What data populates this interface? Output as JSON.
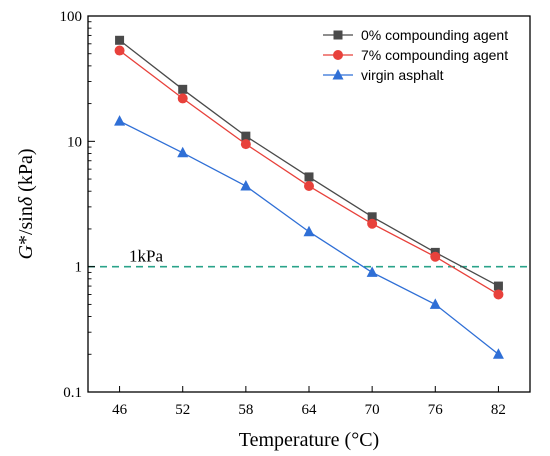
{
  "chart_data": {
    "type": "line",
    "x": [
      46,
      52,
      58,
      64,
      70,
      76,
      82
    ],
    "xlabel": "Temperature (°C)",
    "ylabel_italic": "G",
    "ylabel_mid": "*/sin",
    "ylabel_delta": "δ",
    "ylabel_unit": " (kPa)",
    "yscale": "log",
    "ylim": [
      0.1,
      100
    ],
    "xlim": [
      43,
      85
    ],
    "xticks": [
      "46",
      "52",
      "58",
      "64",
      "70",
      "76",
      "82"
    ],
    "yticks": [
      {
        "value": 0.1,
        "label": "0.1"
      },
      {
        "value": 1,
        "label": "1"
      },
      {
        "value": 10,
        "label": "10"
      },
      {
        "value": 100,
        "label": "100"
      }
    ],
    "legend_position": "top-right",
    "series": [
      {
        "name": "0% compounding agent",
        "color": "#4a4a4a",
        "marker": "square",
        "values": [
          64,
          26,
          11,
          5.2,
          2.5,
          1.3,
          0.7
        ]
      },
      {
        "name": "7% compounding agent",
        "color": "#e8413b",
        "marker": "circle",
        "values": [
          53,
          22,
          9.5,
          4.4,
          2.2,
          1.2,
          0.6
        ]
      },
      {
        "name": "virgin asphalt",
        "color": "#2f6fd6",
        "marker": "triangle",
        "values": [
          14.5,
          8.1,
          4.4,
          1.9,
          0.9,
          0.5,
          0.2
        ]
      }
    ],
    "reference_line": {
      "value": 1,
      "label": "1kPa",
      "color": "#2aa38a"
    }
  }
}
